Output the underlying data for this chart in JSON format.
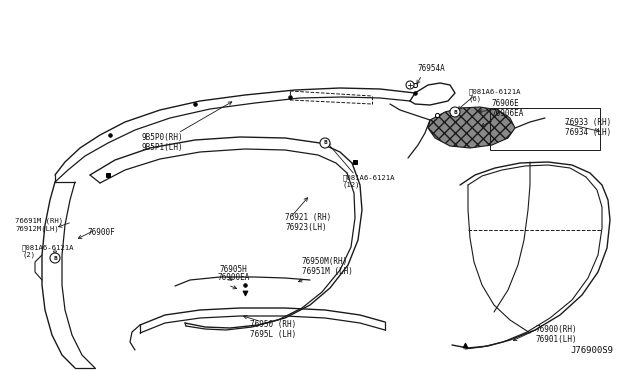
{
  "bg_color": "#ffffff",
  "line_color": "#1a1a1a",
  "figsize": [
    6.4,
    3.72
  ],
  "dpi": 100,
  "xlim": [
    0,
    640
  ],
  "ylim": [
    0,
    372
  ]
}
